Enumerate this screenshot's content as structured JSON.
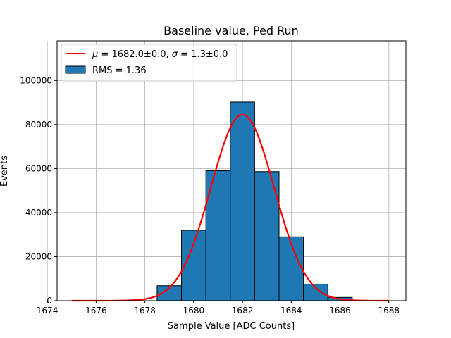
{
  "chart_data": {
    "type": "bar",
    "title": "Baseline value, Ped Run",
    "xlabel": "Sample Value [ADC Counts]",
    "ylabel": "Events",
    "xlim": [
      1674.4,
      1688.7
    ],
    "ylim": [
      0,
      118000
    ],
    "grid": true,
    "legend_position": "top-left",
    "xticks": [
      1674,
      1676,
      1678,
      1680,
      1682,
      1684,
      1686,
      1688
    ],
    "yticks": [
      0,
      20000,
      40000,
      60000,
      80000,
      100000
    ],
    "x_tick_labels": [
      "1674",
      "1676",
      "1678",
      "1680",
      "1682",
      "1684",
      "1686",
      "1688"
    ],
    "y_tick_labels": [
      "0",
      "20000",
      "40000",
      "60000",
      "80000",
      "100000"
    ],
    "histogram": {
      "name": "RMS = 1.36",
      "bin_edges": [
        1674.5,
        1675.5,
        1676.5,
        1677.5,
        1678.5,
        1679.5,
        1680.5,
        1681.5,
        1682.5,
        1683.5,
        1684.5,
        1685.5,
        1686.5,
        1687.5
      ],
      "values": [
        0,
        0,
        0,
        0,
        6800,
        32000,
        59000,
        90200,
        58600,
        29000,
        7500,
        1500,
        0
      ],
      "color": "#1f77b4",
      "edge_color": "#000000"
    },
    "fit": {
      "name": "μ = 1682.0±0.0, σ = 1.3±0.0",
      "label_parts": {
        "mu_symbol": "μ",
        "mu_text": " = 1682.0±0.0, ",
        "sigma_symbol": "σ",
        "sigma_text": " = 1.3±0.0"
      },
      "mu": 1682.0,
      "sigma": 1.3,
      "amplitude": 84500,
      "x_range": [
        1675,
        1688
      ],
      "color": "#ff0000"
    }
  }
}
